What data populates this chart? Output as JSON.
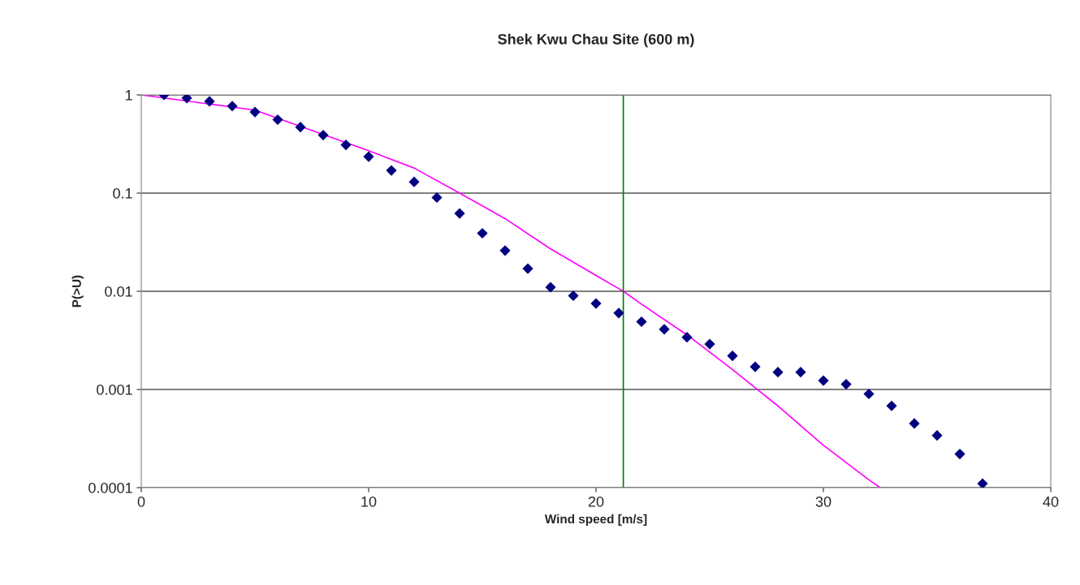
{
  "chart_data": {
    "type": "scatter",
    "title": "Shek Kwu Chau Site (600 m)",
    "xlabel": "Wind speed [m/s]",
    "ylabel": "P(>U)",
    "log": "y",
    "grid": "y",
    "legend": false,
    "xlim": [
      0,
      40
    ],
    "xticks": [
      0,
      10,
      20,
      30,
      40
    ],
    "ylim": [
      0.0001,
      1
    ],
    "yticks": [
      0.0001,
      0.001,
      0.01,
      0.1,
      1
    ],
    "series": [
      {
        "color": "#000080",
        "marker": "diamond",
        "x": [
          1,
          2,
          3,
          4,
          5,
          6,
          7,
          8,
          9,
          10,
          11,
          12,
          13,
          14,
          15,
          16,
          17,
          18,
          19,
          20,
          21,
          22,
          23,
          24,
          25,
          26,
          27,
          28,
          29,
          30,
          31,
          32,
          33,
          34,
          35,
          36,
          37
        ],
        "values": [
          1.0,
          0.93,
          0.86,
          0.77,
          0.67,
          0.56,
          0.47,
          0.39,
          0.31,
          0.235,
          0.17,
          0.13,
          0.09,
          0.062,
          0.039,
          0.026,
          0.017,
          0.011,
          0.009,
          0.0075,
          0.006,
          0.0049,
          0.0041,
          0.0034,
          0.0029,
          0.0022,
          0.0017,
          0.0015,
          0.0015,
          0.00123,
          0.00113,
          0.0009,
          0.00068,
          0.00045,
          0.00034,
          0.00022,
          0.00011
        ]
      },
      {
        "type": "line",
        "color": "#ff00ff",
        "marker": "none",
        "line_style": "solid",
        "x": [
          0,
          5,
          10,
          12,
          14,
          16,
          18,
          20,
          21.2,
          22,
          24,
          26,
          27,
          28,
          30,
          32,
          32.5
        ],
        "values": [
          1.0,
          0.7,
          0.27,
          0.18,
          0.1,
          0.055,
          0.027,
          0.0145,
          0.01,
          0.0074,
          0.0036,
          0.0016,
          0.00104,
          0.00068,
          0.00027,
          0.00012,
          0.0001
        ]
      }
    ],
    "ref_lines": [
      {
        "axis": "x",
        "value": 21.2,
        "color": "#008000",
        "line_style": "solid"
      }
    ]
  }
}
